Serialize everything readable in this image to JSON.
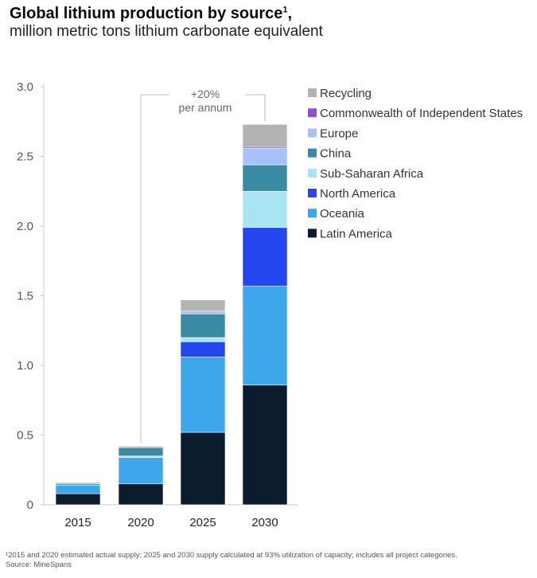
{
  "header": {
    "title": "Global lithium production by source",
    "title_sup": "1",
    "title_suffix": ",",
    "subtitle": "million metric tons lithium carbonate equivalent"
  },
  "chart_data": {
    "type": "bar",
    "stacked": true,
    "categories": [
      "2015",
      "2020",
      "2025",
      "2030"
    ],
    "ylim": [
      0,
      3.0
    ],
    "yticks": [
      "0",
      "0.5",
      "1.0",
      "1.5",
      "2.0",
      "2.5",
      "3.0"
    ],
    "grid": false,
    "legend_placement": "top-right",
    "series": [
      {
        "name": "Latin America",
        "color": "#0b1c2e",
        "values": [
          0.08,
          0.15,
          0.52,
          0.86
        ]
      },
      {
        "name": "Oceania",
        "color": "#3ea6ea",
        "values": [
          0.06,
          0.19,
          0.54,
          0.71
        ]
      },
      {
        "name": "North America",
        "color": "#2447f0",
        "values": [
          0.0,
          0.0,
          0.11,
          0.42
        ]
      },
      {
        "name": "Sub-Saharan Africa",
        "color": "#a9e4f2",
        "values": [
          0.0,
          0.01,
          0.03,
          0.26
        ]
      },
      {
        "name": "China",
        "color": "#3b8aa4",
        "values": [
          0.01,
          0.06,
          0.17,
          0.19
        ]
      },
      {
        "name": "Europe",
        "color": "#a9c1fa",
        "values": [
          0.0,
          0.0,
          0.02,
          0.12
        ]
      },
      {
        "name": "Commonwealth of Independent States",
        "color": "#8d4fcf",
        "values": [
          0.0,
          0.0,
          0.0,
          0.01
        ]
      },
      {
        "name": "Recycling",
        "color": "#b3b3b3",
        "values": [
          0.01,
          0.01,
          0.08,
          0.16
        ]
      }
    ],
    "annotation": {
      "line1": "+20%",
      "line2": "per annum",
      "from": "2020",
      "to": "2030"
    }
  },
  "footnote": {
    "line1": "¹2015 and 2020 estimated actual supply; 2025 and 2030 supply calculated at 93% utilization of capacity; includes all project categories.",
    "line2": "Source: MineSpans"
  }
}
